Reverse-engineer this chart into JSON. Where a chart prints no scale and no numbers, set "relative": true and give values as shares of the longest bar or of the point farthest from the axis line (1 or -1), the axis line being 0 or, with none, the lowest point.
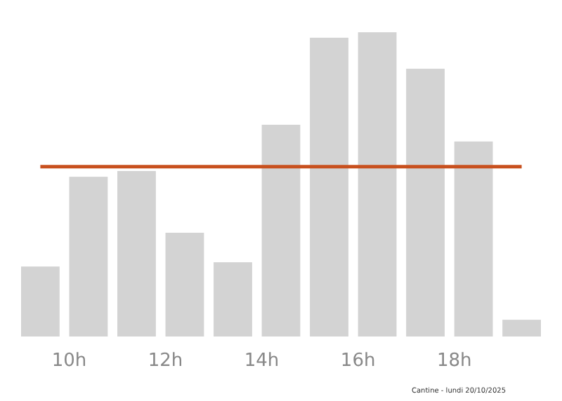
{
  "chart_data": {
    "type": "bar",
    "relative": true,
    "x": [
      9.4,
      10.4,
      11.4,
      12.4,
      13.4,
      14.4,
      15.4,
      16.4,
      17.4,
      18.4,
      19.4
    ],
    "values": [
      0.23,
      0.525,
      0.544,
      0.341,
      0.244,
      0.696,
      0.982,
      1,
      0.88,
      0.641,
      0.055
    ],
    "color": "#d3d3d3",
    "xlim": [
      9.0,
      19.8
    ],
    "xticks": [
      {
        "value": 10,
        "label": "10h"
      },
      {
        "value": 12,
        "label": "12h"
      },
      {
        "value": 14,
        "label": "14h"
      },
      {
        "value": 16,
        "label": "16h"
      },
      {
        "value": 18,
        "label": "18h"
      }
    ],
    "tick_labels": "x",
    "ref_lines": [
      {
        "axis": "y",
        "value": 0.558,
        "color": "#c8501e"
      }
    ],
    "annotations": [
      "Cantine - lundi 20/10/2025"
    ]
  }
}
